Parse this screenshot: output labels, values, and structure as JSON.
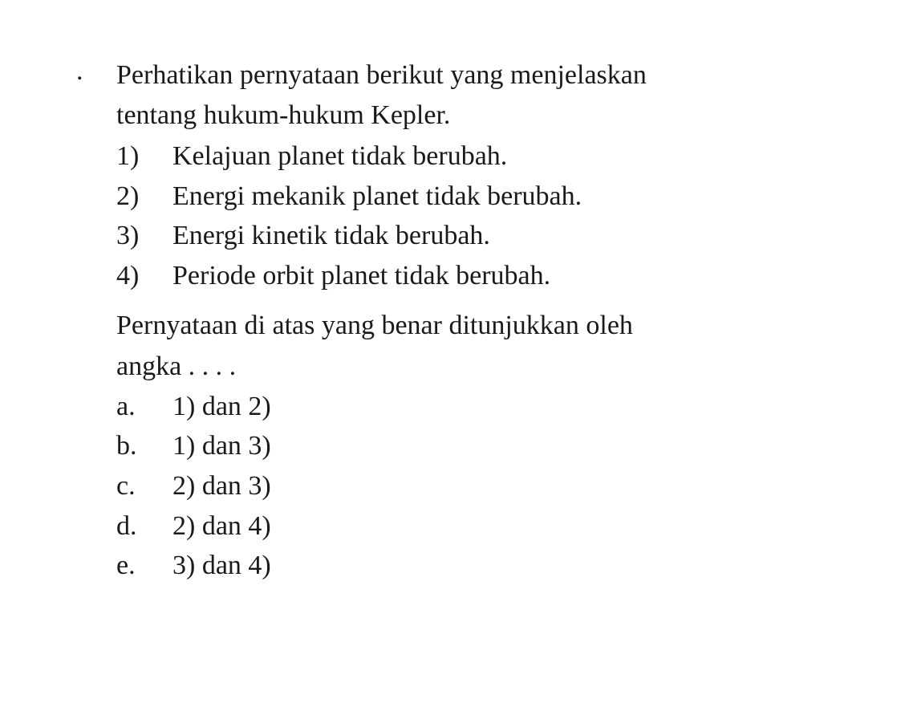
{
  "document": {
    "background_color": "#ffffff",
    "text_color": "#1a1a1a",
    "font_family": "Times New Roman",
    "font_size_pt": 26
  },
  "question": {
    "marker": ".",
    "intro_line1": "Perhatikan pernyataan berikut yang menjelaskan",
    "intro_line2": "tentang hukum-hukum Kepler.",
    "statements": [
      {
        "number": "1)",
        "text": "Kelajuan planet tidak berubah."
      },
      {
        "number": "2)",
        "text": "Energi mekanik planet tidak berubah."
      },
      {
        "number": "3)",
        "text": "Energi kinetik tidak berubah."
      },
      {
        "number": "4)",
        "text": "Periode orbit planet tidak berubah."
      }
    ],
    "prompt_line1": "Pernyataan di atas yang benar ditunjukkan oleh",
    "prompt_line2": "angka . . . .",
    "options": [
      {
        "letter": "a.",
        "text": "1) dan 2)"
      },
      {
        "letter": "b.",
        "text": "1) dan 3)"
      },
      {
        "letter": "c.",
        "text": "2) dan 3)"
      },
      {
        "letter": "d.",
        "text": "2) dan 4)"
      },
      {
        "letter": "e.",
        "text": "3) dan 4)"
      }
    ]
  }
}
